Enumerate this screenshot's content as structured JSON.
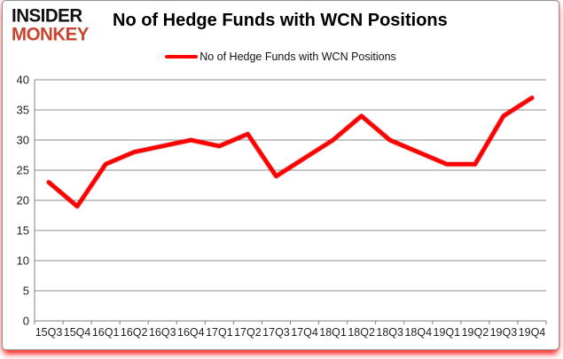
{
  "brand": {
    "line1": "INSIDER",
    "line2": "MONKEY",
    "line2_color": "#c8442c"
  },
  "header": {
    "title": "No of Hedge Funds with WCN Positions"
  },
  "legend": {
    "label": "No of Hedge Funds with WCN Positions",
    "swatch_color": "#ff0000"
  },
  "chart_data": {
    "type": "line",
    "title": "No of Hedge Funds with WCN Positions",
    "categories": [
      "15Q3",
      "15Q4",
      "16Q1",
      "16Q2",
      "16Q3",
      "16Q4",
      "17Q1",
      "17Q2",
      "17Q3",
      "17Q4",
      "18Q1",
      "18Q2",
      "18Q3",
      "18Q4",
      "19Q1",
      "19Q2",
      "19Q3",
      "19Q4"
    ],
    "values": [
      23,
      19,
      26,
      28,
      29,
      30,
      29,
      31,
      24,
      27,
      30,
      34,
      30,
      28,
      26,
      26,
      34,
      37
    ],
    "series_name": "No of Hedge Funds with WCN Positions",
    "xlabel": "",
    "ylabel": "",
    "ylim": [
      0,
      40
    ],
    "yticks": [
      0,
      5,
      10,
      15,
      20,
      25,
      30,
      35,
      40
    ],
    "grid": true,
    "legend_position": "top-center",
    "line_color": "#ff0000",
    "grid_color": "#8c8c8c",
    "axis_color": "#808080",
    "tick_label_color": "#1f1f1f"
  }
}
